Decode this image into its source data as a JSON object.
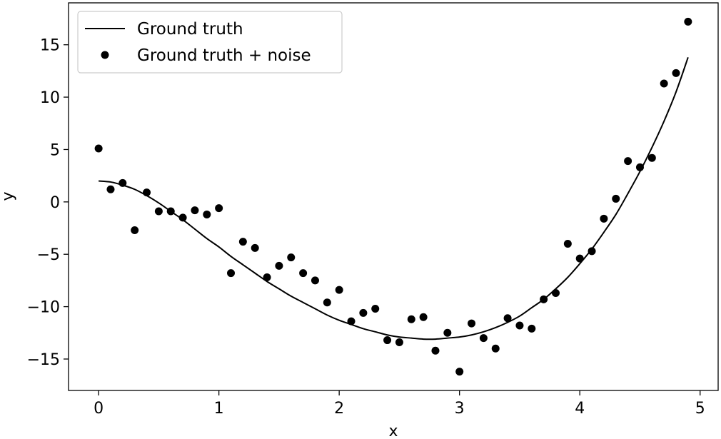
{
  "chart_data": {
    "type": "scatter",
    "title": "",
    "xlabel": "x",
    "ylabel": "y",
    "xlim": [
      -0.25,
      5.15
    ],
    "ylim": [
      -18,
      19
    ],
    "xticks": [
      0,
      1,
      2,
      3,
      4,
      5
    ],
    "yticks": [
      -15,
      -10,
      -5,
      0,
      5,
      10,
      15
    ],
    "xtick_labels": [
      "0",
      "1",
      "2",
      "3",
      "4",
      "5"
    ],
    "ytick_labels": [
      "−15",
      "−10",
      "−5",
      "0",
      "5",
      "10",
      "15"
    ],
    "grid": false,
    "legend": {
      "position": "top-left",
      "entries": [
        "Ground truth",
        "Ground truth + noise"
      ]
    },
    "series": [
      {
        "name": "Ground truth",
        "kind": "line",
        "color": "#000000",
        "x": [
          0,
          0.1,
          0.2,
          0.3,
          0.4,
          0.5,
          0.6,
          0.7,
          0.8,
          0.9,
          1.0,
          1.1,
          1.2,
          1.3,
          1.4,
          1.5,
          1.6,
          1.7,
          1.8,
          1.9,
          2.0,
          2.1,
          2.2,
          2.3,
          2.4,
          2.5,
          2.6,
          2.7,
          2.8,
          2.9,
          3.0,
          3.1,
          3.2,
          3.3,
          3.4,
          3.5,
          3.6,
          3.7,
          3.8,
          3.9,
          4.0,
          4.1,
          4.2,
          4.3,
          4.4,
          4.5,
          4.6,
          4.7,
          4.8,
          4.9
        ],
        "y": [
          2.0,
          1.9,
          1.6,
          1.2,
          0.6,
          -0.1,
          -0.9,
          -1.7,
          -2.6,
          -3.5,
          -4.3,
          -5.2,
          -6.0,
          -6.8,
          -7.6,
          -8.3,
          -9.0,
          -9.6,
          -10.2,
          -10.8,
          -11.3,
          -11.7,
          -12.1,
          -12.4,
          -12.7,
          -12.9,
          -13.0,
          -13.1,
          -13.1,
          -13.0,
          -12.9,
          -12.7,
          -12.4,
          -12.0,
          -11.5,
          -10.9,
          -10.1,
          -9.3,
          -8.3,
          -7.2,
          -5.9,
          -4.5,
          -2.9,
          -1.2,
          0.8,
          2.9,
          5.2,
          7.7,
          10.5,
          13.8
        ]
      },
      {
        "name": "Ground truth + noise",
        "kind": "scatter",
        "color": "#000000",
        "x": [
          0,
          0.1,
          0.2,
          0.3,
          0.4,
          0.5,
          0.6,
          0.7,
          0.8,
          0.9,
          1.0,
          1.1,
          1.2,
          1.3,
          1.4,
          1.5,
          1.6,
          1.7,
          1.8,
          1.9,
          2.0,
          2.1,
          2.2,
          2.3,
          2.4,
          2.5,
          2.6,
          2.7,
          2.8,
          2.9,
          3.0,
          3.1,
          3.2,
          3.3,
          3.4,
          3.5,
          3.6,
          3.7,
          3.8,
          3.9,
          4.0,
          4.1,
          4.2,
          4.3,
          4.4,
          4.5,
          4.6,
          4.7,
          4.8,
          4.9
        ],
        "y": [
          5.1,
          1.2,
          1.8,
          -2.7,
          0.9,
          -0.9,
          -0.9,
          -1.5,
          -0.8,
          -1.2,
          -0.6,
          -6.8,
          -3.8,
          -4.4,
          -7.2,
          -6.1,
          -5.3,
          -6.8,
          -7.5,
          -9.6,
          -8.4,
          -11.4,
          -10.6,
          -10.2,
          -13.2,
          -13.4,
          -11.2,
          -11.0,
          -14.2,
          -12.5,
          -16.2,
          -11.6,
          -13.0,
          -14.0,
          -11.1,
          -11.8,
          -12.1,
          -9.3,
          -8.7,
          -4.0,
          -5.4,
          -4.7,
          -1.6,
          0.3,
          3.9,
          3.3,
          4.2,
          11.3,
          12.3,
          17.2
        ]
      }
    ]
  }
}
